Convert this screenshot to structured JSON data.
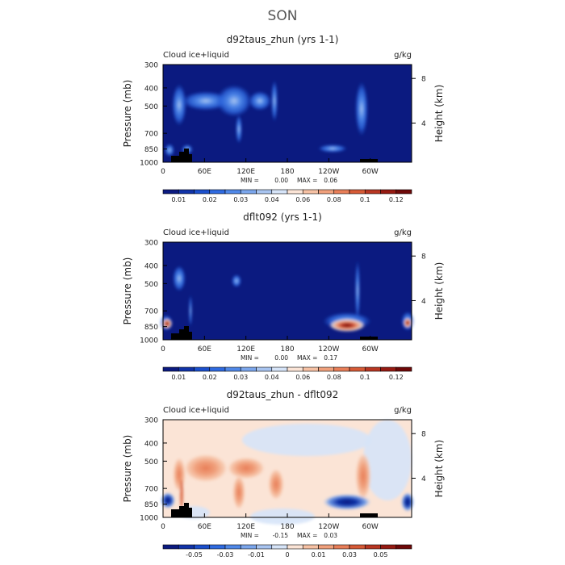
{
  "page": {
    "title": "SON"
  },
  "chart_data": [
    {
      "type": "heatmap",
      "title": "d92taus_zhun (yrs 1-1)",
      "left_label": "Cloud ice+liquid",
      "right_label": "g/kg",
      "ylabel": "Pressure (mb)",
      "y2label": "Height (km)",
      "x_ticks": [
        "0",
        "60E",
        "120E",
        "180",
        "120W",
        "60W"
      ],
      "x_tick_values": [
        0,
        60,
        120,
        180,
        240,
        300
      ],
      "xlim": [
        0,
        360
      ],
      "y_ticks": [
        "300",
        "400",
        "500",
        "700",
        "850",
        "1000"
      ],
      "y_tick_values": [
        300,
        400,
        500,
        700,
        850,
        1000
      ],
      "y2_ticks": [
        "8",
        "4"
      ],
      "y2_tick_pressures": [
        356,
        617
      ],
      "ylim": [
        1000,
        300
      ],
      "stats": {
        "min_label": "MIN =",
        "min": "0.00",
        "max_label": "MAX =",
        "max": "0.06"
      },
      "colorbar": {
        "colors": [
          "#0b1a80",
          "#1133a8",
          "#1b4fcc",
          "#2f6ae0",
          "#5088e8",
          "#7ba6ec",
          "#a8c4f0",
          "#d6e4f8",
          "#fbe4d6",
          "#f6c1a4",
          "#f0a07c",
          "#e87e58",
          "#d65a36",
          "#b83622",
          "#961a12",
          "#6e0808"
        ],
        "labels": [
          "0.01",
          "0.02",
          "0.03",
          "0.04",
          "0.06",
          "0.08",
          "0.1",
          "0.12"
        ],
        "label_positions": [
          1,
          3,
          5,
          7,
          9,
          11,
          13,
          15
        ]
      }
    },
    {
      "type": "heatmap",
      "title": "dflt092 (yrs 1-1)",
      "left_label": "Cloud ice+liquid",
      "right_label": "g/kg",
      "ylabel": "Pressure (mb)",
      "y2label": "Height (km)",
      "x_ticks": [
        "0",
        "60E",
        "120E",
        "180",
        "120W",
        "60W"
      ],
      "x_tick_values": [
        0,
        60,
        120,
        180,
        240,
        300
      ],
      "xlim": [
        0,
        360
      ],
      "y_ticks": [
        "300",
        "400",
        "500",
        "700",
        "850",
        "1000"
      ],
      "y_tick_values": [
        300,
        400,
        500,
        700,
        850,
        1000
      ],
      "y2_ticks": [
        "8",
        "4"
      ],
      "y2_tick_pressures": [
        356,
        617
      ],
      "ylim": [
        1000,
        300
      ],
      "stats": {
        "min_label": "MIN =",
        "min": "0.00",
        "max_label": "MAX =",
        "max": "0.17"
      },
      "colorbar": {
        "colors": [
          "#0b1a80",
          "#1133a8",
          "#1b4fcc",
          "#2f6ae0",
          "#5088e8",
          "#7ba6ec",
          "#a8c4f0",
          "#d6e4f8",
          "#fbe4d6",
          "#f6c1a4",
          "#f0a07c",
          "#e87e58",
          "#d65a36",
          "#b83622",
          "#961a12",
          "#6e0808"
        ],
        "labels": [
          "0.01",
          "0.02",
          "0.03",
          "0.04",
          "0.06",
          "0.08",
          "0.1",
          "0.12"
        ],
        "label_positions": [
          1,
          3,
          5,
          7,
          9,
          11,
          13,
          15
        ]
      }
    },
    {
      "type": "heatmap",
      "title": "d92taus_zhun - dflt092",
      "left_label": "Cloud ice+liquid",
      "right_label": "g/kg",
      "ylabel": "Pressure (mb)",
      "y2label": "Height (km)",
      "x_ticks": [
        "0",
        "60E",
        "120E",
        "180",
        "120W",
        "60W"
      ],
      "x_tick_values": [
        0,
        60,
        120,
        180,
        240,
        300
      ],
      "xlim": [
        0,
        360
      ],
      "y_ticks": [
        "300",
        "400",
        "500",
        "700",
        "850",
        "1000"
      ],
      "y_tick_values": [
        300,
        400,
        500,
        700,
        850,
        1000
      ],
      "y2_ticks": [
        "8",
        "4"
      ],
      "y2_tick_pressures": [
        356,
        617
      ],
      "ylim": [
        1000,
        300
      ],
      "stats": {
        "min_label": "MIN =",
        "min": "-0.15",
        "max_label": "MAX =",
        "max": "0.03"
      },
      "colorbar": {
        "colors": [
          "#0b1a80",
          "#1133a8",
          "#1b4fcc",
          "#2f6ae0",
          "#5088e8",
          "#7ba6ec",
          "#a8c4f0",
          "#d6e4f8",
          "#fbe4d6",
          "#f6c1a4",
          "#f0a07c",
          "#e87e58",
          "#d65a36",
          "#b83622",
          "#961a12",
          "#6e0808"
        ],
        "labels": [
          "-0.05",
          "-0.03",
          "-0.01",
          "0",
          "0.01",
          "0.03",
          "0.05"
        ],
        "label_positions": [
          2,
          4,
          6,
          8,
          10,
          12,
          14
        ]
      }
    }
  ]
}
